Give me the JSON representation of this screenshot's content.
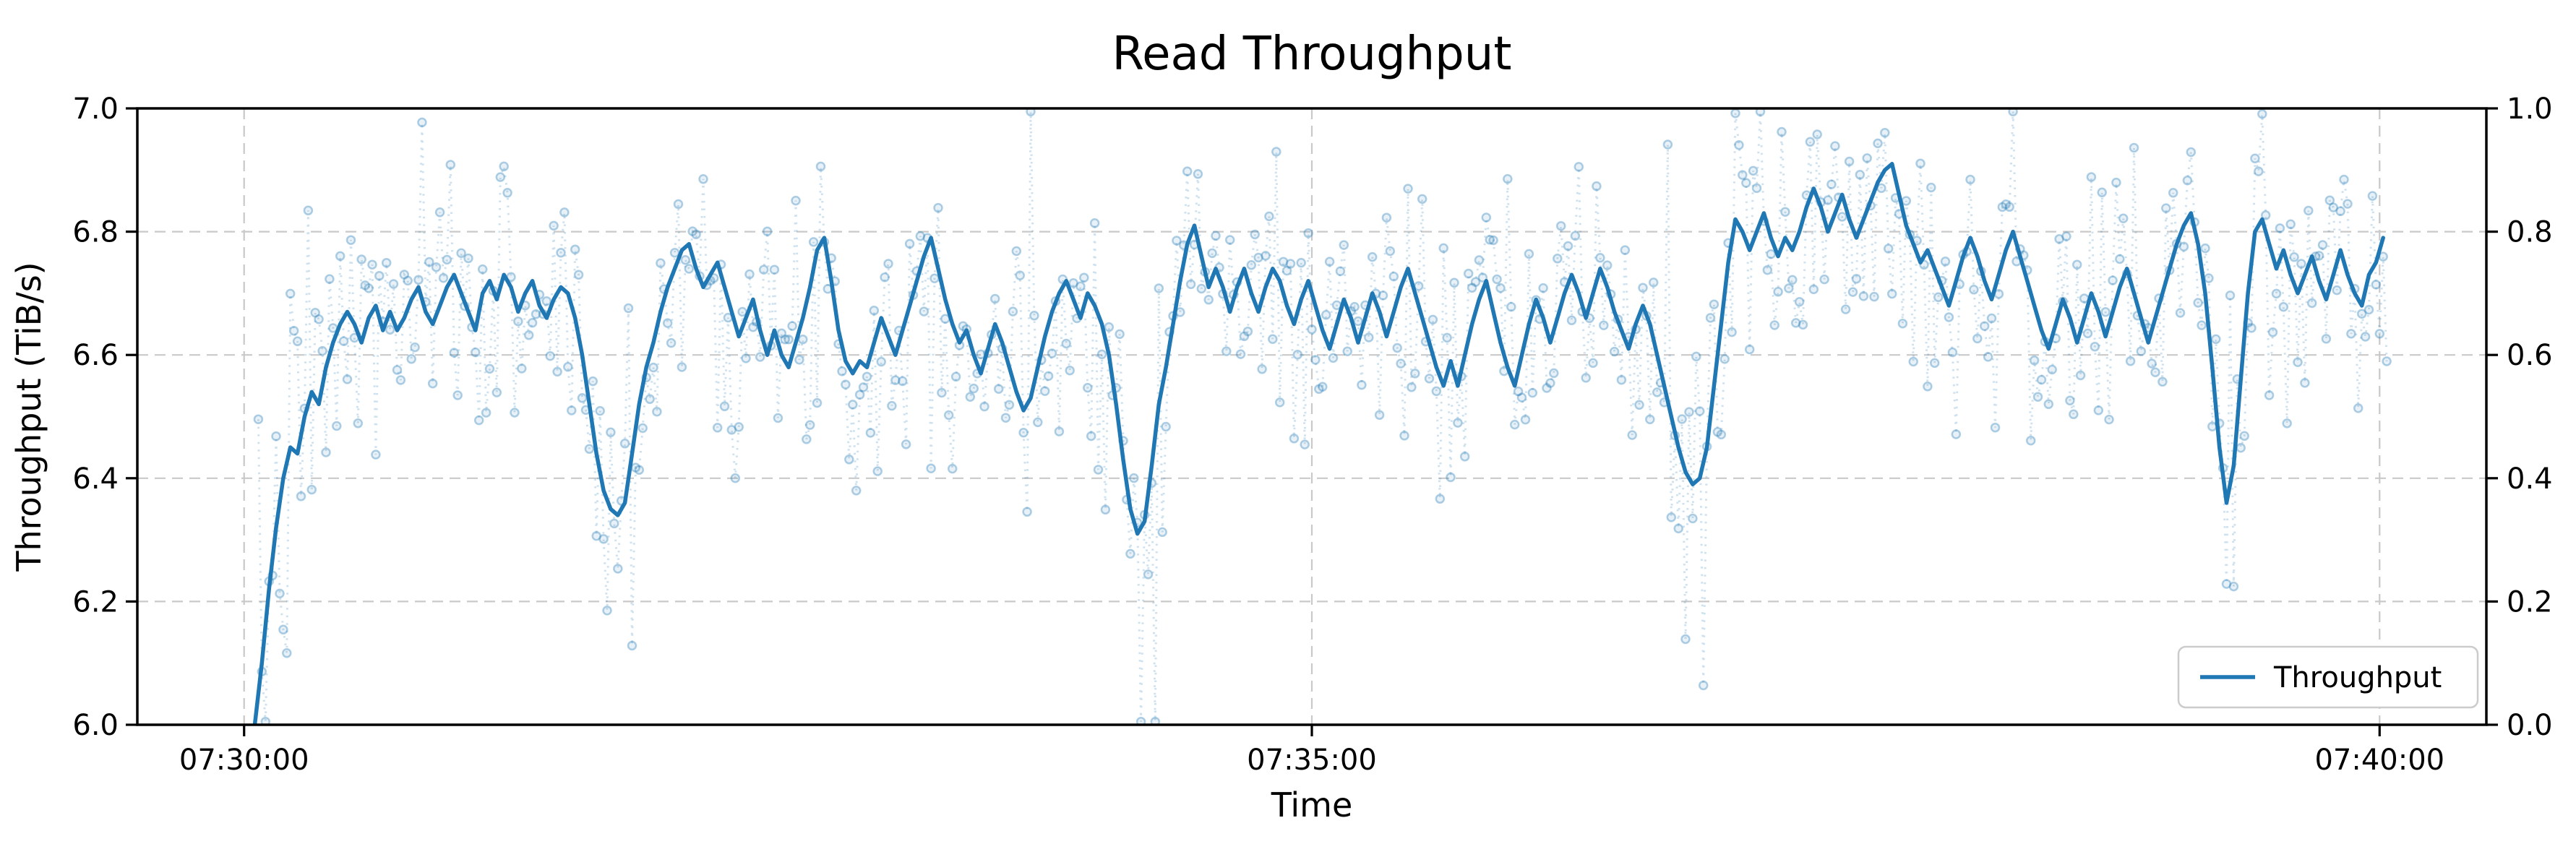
{
  "title": "Read Throughput",
  "axes": {
    "xlabel": "Time",
    "ylabel": "Throughput (TiB/s)",
    "x_ticks": [
      {
        "s": 0,
        "label": "07:30:00"
      },
      {
        "s": 300,
        "label": "07:35:00"
      },
      {
        "s": 600,
        "label": "07:40:00"
      }
    ],
    "y_left_ticks": [
      {
        "v": 6.0,
        "label": "6.0"
      },
      {
        "v": 6.2,
        "label": "6.2"
      },
      {
        "v": 6.4,
        "label": "6.4"
      },
      {
        "v": 6.6,
        "label": "6.6"
      },
      {
        "v": 6.8,
        "label": "6.8"
      },
      {
        "v": 7.0,
        "label": "7.0"
      }
    ],
    "y_right_ticks": [
      {
        "v": 0.0,
        "label": "0.0"
      },
      {
        "v": 0.2,
        "label": "0.2"
      },
      {
        "v": 0.4,
        "label": "0.4"
      },
      {
        "v": 0.6,
        "label": "0.6"
      },
      {
        "v": 0.8,
        "label": "0.8"
      },
      {
        "v": 1.0,
        "label": "1.0"
      }
    ],
    "xlim_s": [
      -30,
      630
    ],
    "ylim": [
      6.0,
      7.0
    ],
    "y2lim": [
      0.0,
      1.0
    ],
    "grid": true,
    "grid_y_values": [
      6.2,
      6.4,
      6.6,
      6.8
    ]
  },
  "legend": {
    "label": "Throughput",
    "position": "lower right"
  },
  "colors": {
    "line": "#1f77b4",
    "scatter": "#1f77b4",
    "grid": "#c9c9c9",
    "spine": "#000000",
    "background": "#ffffff"
  },
  "chart_data": {
    "type": "line",
    "title": "Read Throughput",
    "xlabel": "Time",
    "ylabel": "Throughput (TiB/s)",
    "ylim": [
      6.0,
      7.0
    ],
    "legend_position": "lower right",
    "series": [
      {
        "name": "Throughput",
        "role": "smoothed-mean-line",
        "x_start_s": 3,
        "x_step_s": 2,
        "time_base": "07:30:00",
        "values": [
          6.0,
          6.1,
          6.22,
          6.32,
          6.4,
          6.45,
          6.44,
          6.5,
          6.54,
          6.52,
          6.58,
          6.62,
          6.65,
          6.67,
          6.65,
          6.62,
          6.66,
          6.68,
          6.64,
          6.67,
          6.64,
          6.66,
          6.69,
          6.71,
          6.67,
          6.65,
          6.68,
          6.71,
          6.73,
          6.7,
          6.67,
          6.64,
          6.7,
          6.72,
          6.69,
          6.73,
          6.71,
          6.67,
          6.7,
          6.72,
          6.68,
          6.66,
          6.69,
          6.71,
          6.7,
          6.66,
          6.6,
          6.52,
          6.44,
          6.38,
          6.35,
          6.34,
          6.36,
          6.44,
          6.52,
          6.58,
          6.62,
          6.67,
          6.71,
          6.74,
          6.77,
          6.78,
          6.74,
          6.71,
          6.73,
          6.75,
          6.71,
          6.67,
          6.63,
          6.66,
          6.69,
          6.64,
          6.6,
          6.64,
          6.6,
          6.58,
          6.62,
          6.66,
          6.71,
          6.77,
          6.79,
          6.72,
          6.64,
          6.59,
          6.57,
          6.59,
          6.58,
          6.62,
          6.66,
          6.63,
          6.6,
          6.64,
          6.68,
          6.72,
          6.76,
          6.79,
          6.74,
          6.69,
          6.65,
          6.62,
          6.64,
          6.6,
          6.57,
          6.61,
          6.65,
          6.62,
          6.58,
          6.54,
          6.51,
          6.53,
          6.58,
          6.63,
          6.67,
          6.7,
          6.72,
          6.69,
          6.66,
          6.7,
          6.68,
          6.65,
          6.6,
          6.52,
          6.43,
          6.35,
          6.31,
          6.33,
          6.42,
          6.52,
          6.58,
          6.65,
          6.72,
          6.78,
          6.81,
          6.76,
          6.71,
          6.74,
          6.71,
          6.67,
          6.71,
          6.74,
          6.7,
          6.67,
          6.71,
          6.74,
          6.72,
          6.68,
          6.65,
          6.69,
          6.72,
          6.68,
          6.64,
          6.61,
          6.65,
          6.69,
          6.66,
          6.62,
          6.66,
          6.7,
          6.67,
          6.63,
          6.67,
          6.71,
          6.74,
          6.7,
          6.66,
          6.62,
          6.58,
          6.55,
          6.59,
          6.55,
          6.6,
          6.65,
          6.69,
          6.72,
          6.67,
          6.62,
          6.58,
          6.55,
          6.6,
          6.65,
          6.69,
          6.66,
          6.62,
          6.66,
          6.7,
          6.73,
          6.7,
          6.66,
          6.7,
          6.74,
          6.71,
          6.67,
          6.64,
          6.61,
          6.65,
          6.68,
          6.65,
          6.6,
          6.55,
          6.5,
          6.45,
          6.41,
          6.39,
          6.4,
          6.45,
          6.55,
          6.65,
          6.75,
          6.82,
          6.8,
          6.77,
          6.8,
          6.83,
          6.79,
          6.76,
          6.79,
          6.77,
          6.8,
          6.84,
          6.87,
          6.84,
          6.8,
          6.83,
          6.86,
          6.82,
          6.79,
          6.82,
          6.85,
          6.88,
          6.9,
          6.91,
          6.86,
          6.81,
          6.78,
          6.75,
          6.77,
          6.74,
          6.71,
          6.68,
          6.72,
          6.76,
          6.79,
          6.76,
          6.72,
          6.69,
          6.73,
          6.77,
          6.8,
          6.76,
          6.72,
          6.68,
          6.64,
          6.61,
          6.65,
          6.69,
          6.66,
          6.62,
          6.66,
          6.7,
          6.67,
          6.63,
          6.67,
          6.71,
          6.74,
          6.7,
          6.66,
          6.62,
          6.66,
          6.7,
          6.74,
          6.78,
          6.81,
          6.83,
          6.78,
          6.7,
          6.58,
          6.45,
          6.36,
          6.42,
          6.56,
          6.7,
          6.8,
          6.82,
          6.78,
          6.74,
          6.77,
          6.73,
          6.7,
          6.73,
          6.76,
          6.72,
          6.69,
          6.73,
          6.77,
          6.73,
          6.7,
          6.68,
          6.73,
          6.75,
          6.79
        ]
      }
    ],
    "raw_samples": {
      "role": "scatter-with-dotted-connector",
      "derived_from": "smoothed-mean-line",
      "t_start_s": 4,
      "t_end_s": 602,
      "interval_s": 1,
      "noise_sd": 0.095,
      "dip_noise_boost": 1.7,
      "downside_bias": 1.25,
      "clip": [
        6.005,
        6.995
      ],
      "seed": 7,
      "marker": "circle",
      "marker_radius_px": 5.5,
      "approx_count": 599
    }
  }
}
